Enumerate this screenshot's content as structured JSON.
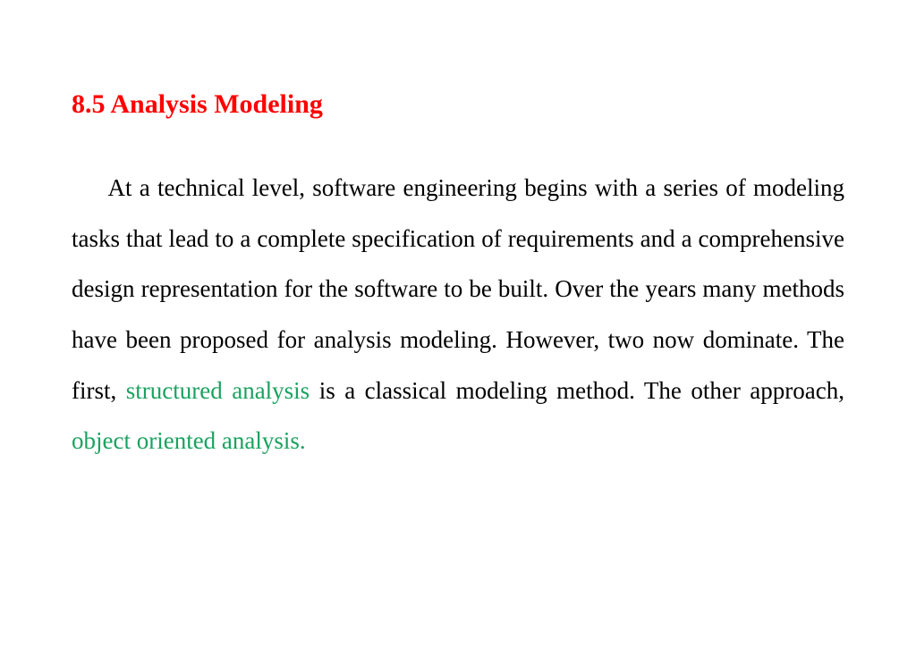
{
  "colors": {
    "heading": "#ff0000",
    "body": "#000000",
    "highlight": "#1aa260",
    "background": "#ffffff"
  },
  "typography": {
    "heading_fontsize": 30,
    "body_fontsize": 27,
    "font_family": "Times New Roman",
    "line_height": 2.1,
    "text_align": "justify",
    "text_indent_em": 1.5
  },
  "heading": "8.5 Analysis Modeling",
  "paragraph": {
    "text_before_1": "At a technical level, software engineering begins with a series of modeling tasks that lead to a complete specification  of requirements and a comprehensive design representation  for the software to be built. Over the years many methods  have been proposed for analysis modeling. However, two  now dominate. The first, ",
    "highlight_1": "structured analysis",
    "text_between": " is a classical  modeling method. The other approach, ",
    "highlight_2": "object oriented  analysis."
  }
}
